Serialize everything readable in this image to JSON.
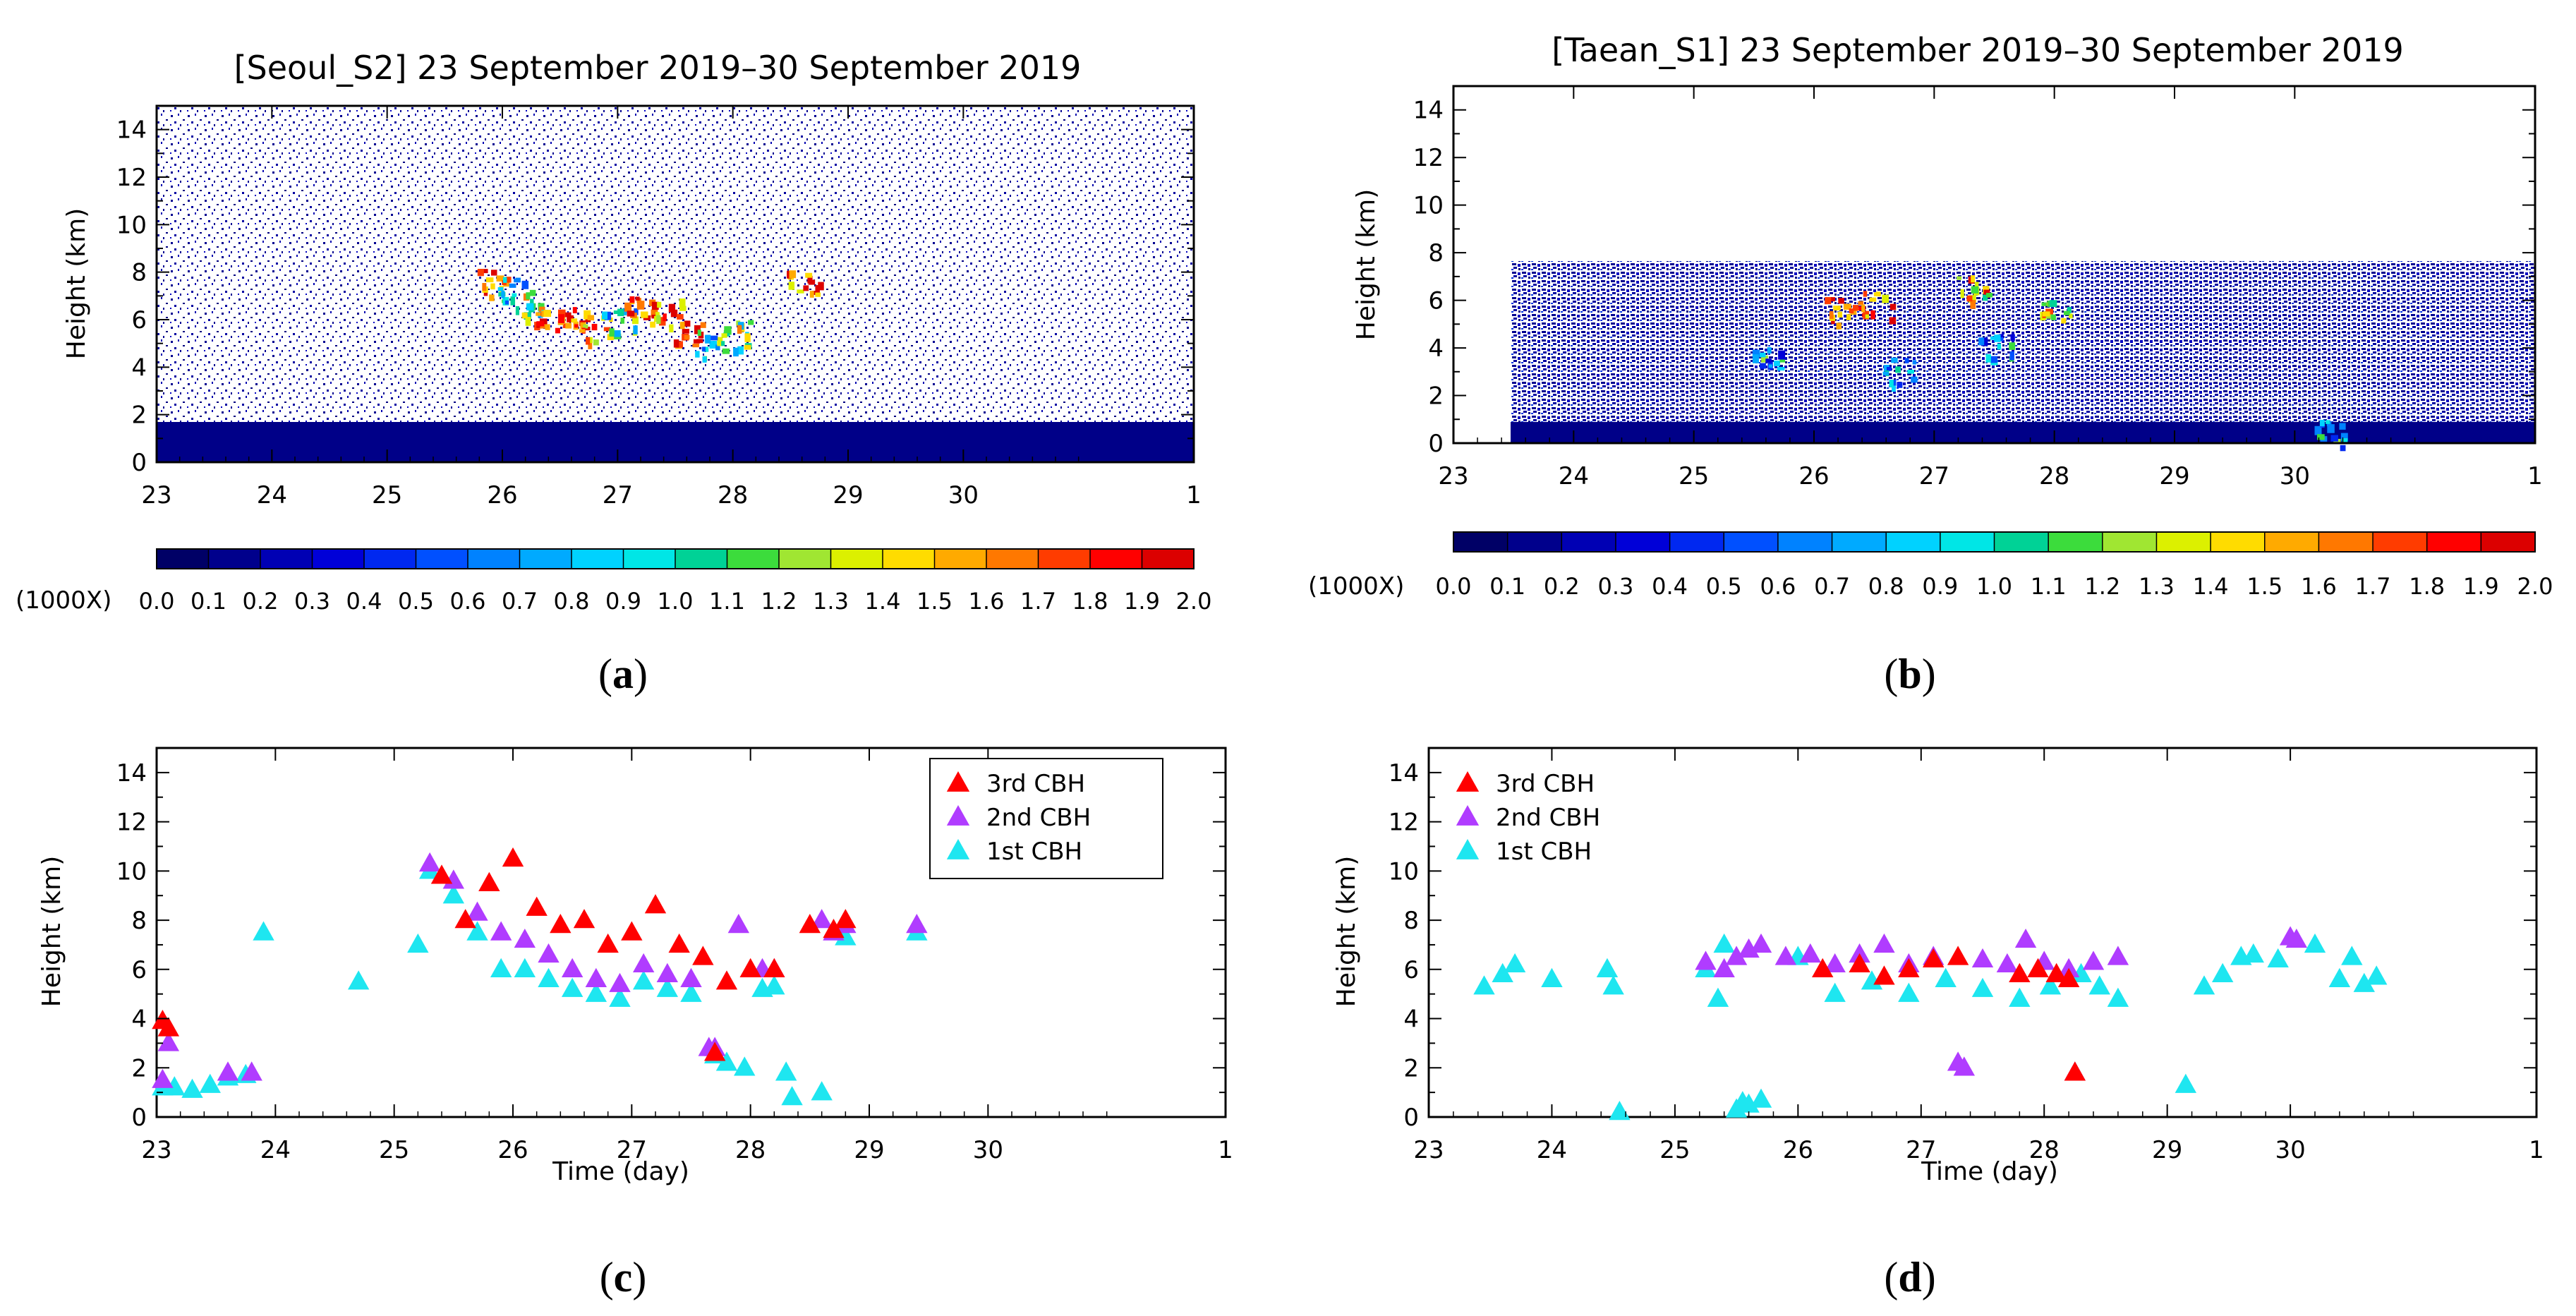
{
  "panels": [
    {
      "id": "a",
      "label_open": "(",
      "label_letter": "a",
      "label_close": ")",
      "title": "[Seoul_S2] 23 September 2019–30 September 2019",
      "ylabel": "Height (km)",
      "xlabel": "",
      "y_ticks": [
        "0",
        "2",
        "4",
        "6",
        "8",
        "10",
        "12",
        "14"
      ],
      "x_ticks": [
        "23",
        "24",
        "25",
        "26",
        "27",
        "28",
        "29",
        "30",
        "1"
      ],
      "colorbar_unit": "(1000X)",
      "colorbar_ticks": [
        "0.0",
        "0.1",
        "0.2",
        "0.3",
        "0.4",
        "0.5",
        "0.6",
        "0.7",
        "0.8",
        "0.9",
        "1.0",
        "1.1",
        "1.2",
        "1.3",
        "1.4",
        "1.5",
        "1.6",
        "1.7",
        "1.8",
        "1.9",
        "2.0"
      ]
    },
    {
      "id": "b",
      "label_open": "(",
      "label_letter": "b",
      "label_close": ")",
      "title": "[Taean_S1] 23 September 2019–30 September 2019",
      "ylabel": "Height (km)",
      "xlabel": "",
      "y_ticks": [
        "0",
        "2",
        "4",
        "6",
        "8",
        "10",
        "12",
        "14"
      ],
      "x_ticks": [
        "23",
        "24",
        "25",
        "26",
        "27",
        "28",
        "29",
        "30",
        "1"
      ],
      "colorbar_unit": "(1000X)",
      "colorbar_ticks": [
        "0.0",
        "0.1",
        "0.2",
        "0.3",
        "0.4",
        "0.5",
        "0.6",
        "0.7",
        "0.8",
        "0.9",
        "1.0",
        "1.1",
        "1.2",
        "1.3",
        "1.4",
        "1.5",
        "1.6",
        "1.7",
        "1.8",
        "1.9",
        "2.0"
      ]
    },
    {
      "id": "c",
      "label_open": "(",
      "label_letter": "c",
      "label_close": ")",
      "title": "",
      "ylabel": "Height (km)",
      "xlabel": "Time (day)",
      "y_ticks": [
        "0",
        "2",
        "4",
        "6",
        "8",
        "10",
        "12",
        "14"
      ],
      "x_ticks": [
        "23",
        "24",
        "25",
        "26",
        "27",
        "28",
        "29",
        "30",
        "1"
      ],
      "legend": [
        "3rd CBH",
        "2nd CBH",
        "1st CBH"
      ]
    },
    {
      "id": "d",
      "label_open": "(",
      "label_letter": "d",
      "label_close": ")",
      "title": "",
      "ylabel": "Height (km)",
      "xlabel": "Time (day)",
      "y_ticks": [
        "0",
        "2",
        "4",
        "6",
        "8",
        "10",
        "12",
        "14"
      ],
      "x_ticks": [
        "23",
        "24",
        "25",
        "26",
        "27",
        "28",
        "29",
        "30",
        "1"
      ],
      "legend": [
        "3rd CBH",
        "2nd CBH",
        "1st CBH"
      ]
    }
  ],
  "colors": {
    "cbh3": "#ff0000",
    "cbh2": "#b03cff",
    "cbh1": "#1ee6f0",
    "colorbar": [
      "#000066",
      "#00008c",
      "#0000b4",
      "#0000d8",
      "#0028f0",
      "#0050ff",
      "#0082ff",
      "#00aaff",
      "#00d2ff",
      "#00e6e6",
      "#00d296",
      "#3cdc3c",
      "#a0e632",
      "#dcf000",
      "#ffdc00",
      "#ffaa00",
      "#ff7800",
      "#ff3c00",
      "#ff0000",
      "#dc0000"
    ]
  },
  "chart_data": [
    {
      "panel": "a",
      "type": "heatmap",
      "title": "[Seoul_S2] 23 September 2019–30 September 2019",
      "ylabel": "Height (km)",
      "xlim": [
        23,
        32
      ],
      "ylim": [
        0,
        15
      ],
      "x_tick_values": [
        23,
        24,
        25,
        26,
        27,
        28,
        29,
        30,
        32
      ],
      "colorbar_range": [
        0.0,
        2.0
      ],
      "colorbar_unit": "(1000X)",
      "background_layer": {
        "x": [
          23,
          32
        ],
        "y": [
          0,
          1.2
        ],
        "value": 0.05
      },
      "noise_field": {
        "x": [
          23,
          32
        ],
        "y": [
          1.2,
          15
        ],
        "value": 0.1
      },
      "cloud_features": [
        {
          "x": 25.9,
          "y": 7.6,
          "value": 1.8
        },
        {
          "x": 26.1,
          "y": 7.2,
          "value": 0.8
        },
        {
          "x": 26.2,
          "y": 6.6,
          "value": 1.2
        },
        {
          "x": 26.4,
          "y": 6.2,
          "value": 1.8
        },
        {
          "x": 26.6,
          "y": 6.0,
          "value": 1.9
        },
        {
          "x": 26.8,
          "y": 5.6,
          "value": 1.6
        },
        {
          "x": 27.0,
          "y": 5.9,
          "value": 1.0
        },
        {
          "x": 27.2,
          "y": 6.5,
          "value": 1.8
        },
        {
          "x": 27.4,
          "y": 6.3,
          "value": 1.7
        },
        {
          "x": 27.6,
          "y": 5.5,
          "value": 1.9
        },
        {
          "x": 27.8,
          "y": 5.0,
          "value": 0.9
        },
        {
          "x": 28.0,
          "y": 5.4,
          "value": 1.2
        },
        {
          "x": 28.6,
          "y": 7.5,
          "value": 1.8
        }
      ]
    },
    {
      "panel": "b",
      "type": "heatmap",
      "title": "[Taean_S1] 23 September 2019–30 September 2019",
      "ylabel": "Height (km)",
      "xlim": [
        23,
        32
      ],
      "ylim": [
        0,
        15
      ],
      "x_tick_values": [
        23,
        24,
        25,
        26,
        27,
        28,
        29,
        30,
        32
      ],
      "colorbar_range": [
        0.0,
        2.0
      ],
      "colorbar_unit": "(1000X)",
      "data_coverage": {
        "x": [
          23.5,
          32
        ],
        "y": [
          0,
          7.5
        ]
      },
      "background_layer": {
        "x": [
          23.5,
          32
        ],
        "y": [
          0,
          0.8
        ],
        "value": 0.05
      },
      "cloud_features": [
        {
          "x": 26.2,
          "y": 5.6,
          "value": 1.8
        },
        {
          "x": 26.5,
          "y": 5.8,
          "value": 1.6
        },
        {
          "x": 27.3,
          "y": 6.5,
          "value": 1.5
        },
        {
          "x": 28.0,
          "y": 5.8,
          "value": 1.4
        },
        {
          "x": 25.6,
          "y": 3.5,
          "value": 0.8
        },
        {
          "x": 26.7,
          "y": 3.0,
          "value": 0.8
        },
        {
          "x": 27.5,
          "y": 4.0,
          "value": 0.8
        },
        {
          "x": 30.3,
          "y": 0.5,
          "value": 0.8
        }
      ]
    },
    {
      "panel": "c",
      "type": "scatter",
      "xlabel": "Time (day)",
      "ylabel": "Height (km)",
      "xlim": [
        23,
        32
      ],
      "ylim": [
        0,
        15
      ],
      "x_tick_values": [
        23,
        24,
        25,
        26,
        27,
        28,
        29,
        30,
        32
      ],
      "legend_position": "top-right",
      "series": [
        {
          "name": "1st CBH",
          "x": [
            23.05,
            23.15,
            23.3,
            23.45,
            23.6,
            23.75,
            23.9,
            24.7,
            25.2,
            25.3,
            25.5,
            25.7,
            25.9,
            26.1,
            26.3,
            26.5,
            26.7,
            26.9,
            27.1,
            27.3,
            27.5,
            27.7,
            27.8,
            27.95,
            28.1,
            28.2,
            28.3,
            28.35,
            28.6,
            28.8,
            29.4
          ],
          "y": [
            1.2,
            1.2,
            1.1,
            1.3,
            1.6,
            1.7,
            7.5,
            5.5,
            7.0,
            10.0,
            9.0,
            7.5,
            6.0,
            6.0,
            5.6,
            5.2,
            5.0,
            4.8,
            5.5,
            5.2,
            5.0,
            2.5,
            2.2,
            2.0,
            5.2,
            5.3,
            1.8,
            0.8,
            1.0,
            7.3,
            7.5
          ]
        },
        {
          "name": "2nd CBH",
          "x": [
            23.05,
            23.1,
            23.6,
            23.8,
            25.3,
            25.5,
            25.7,
            25.9,
            26.1,
            26.3,
            26.5,
            26.7,
            26.9,
            27.1,
            27.3,
            27.5,
            27.65,
            27.7,
            27.9,
            28.1,
            28.2,
            28.6,
            28.7,
            28.8,
            29.4
          ],
          "y": [
            1.5,
            3.0,
            1.8,
            1.8,
            10.3,
            9.6,
            8.3,
            7.5,
            7.2,
            6.6,
            6.0,
            5.6,
            5.4,
            6.2,
            5.8,
            5.6,
            2.8,
            2.8,
            7.8,
            6.0,
            6.0,
            8.0,
            7.5,
            7.8,
            7.8
          ]
        },
        {
          "name": "3rd CBH",
          "x": [
            23.05,
            23.1,
            25.4,
            25.6,
            25.8,
            26.0,
            26.2,
            26.4,
            26.6,
            26.8,
            27.0,
            27.2,
            27.4,
            27.6,
            27.7,
            27.8,
            28.0,
            28.2,
            28.5,
            28.7,
            28.8
          ],
          "y": [
            3.9,
            3.6,
            9.8,
            8.0,
            9.5,
            10.5,
            8.5,
            7.8,
            8.0,
            7.0,
            7.5,
            8.6,
            7.0,
            6.5,
            2.6,
            5.5,
            6.0,
            6.0,
            7.8,
            7.6,
            8.0
          ]
        }
      ]
    },
    {
      "panel": "d",
      "type": "scatter",
      "xlabel": "Time (day)",
      "ylabel": "Height (km)",
      "xlim": [
        23,
        32
      ],
      "ylim": [
        0,
        15
      ],
      "x_tick_values": [
        23,
        24,
        25,
        26,
        27,
        28,
        29,
        30,
        32
      ],
      "legend_position": "top-left",
      "series": [
        {
          "name": "1st CBH",
          "x": [
            23.45,
            23.6,
            23.7,
            24.0,
            24.45,
            24.5,
            24.55,
            25.25,
            25.35,
            25.4,
            25.5,
            25.55,
            25.6,
            25.7,
            26.0,
            26.3,
            26.6,
            26.9,
            27.2,
            27.5,
            27.8,
            28.05,
            28.3,
            28.45,
            28.6,
            29.15,
            29.3,
            29.45,
            29.6,
            29.7,
            29.9,
            30.2,
            30.4,
            30.5,
            30.6,
            30.7
          ],
          "y": [
            5.3,
            5.8,
            6.2,
            5.6,
            6.0,
            5.3,
            0.2,
            6.0,
            4.8,
            7.0,
            0.3,
            0.6,
            0.5,
            0.7,
            6.5,
            5.0,
            5.5,
            5.0,
            5.6,
            5.2,
            4.8,
            5.3,
            5.8,
            5.3,
            4.8,
            1.3,
            5.3,
            5.8,
            6.5,
            6.6,
            6.4,
            7.0,
            5.6,
            6.5,
            5.4,
            5.7
          ]
        },
        {
          "name": "2nd CBH",
          "x": [
            25.25,
            25.4,
            25.5,
            25.6,
            25.7,
            25.9,
            26.1,
            26.3,
            26.5,
            26.7,
            26.9,
            27.1,
            27.3,
            27.35,
            27.5,
            27.7,
            27.85,
            28.0,
            28.2,
            28.25,
            28.4,
            28.6,
            30.0,
            30.05
          ],
          "y": [
            6.3,
            6.0,
            6.5,
            6.8,
            7.0,
            6.5,
            6.6,
            6.2,
            6.6,
            7.0,
            6.2,
            6.5,
            2.2,
            2.0,
            6.4,
            6.2,
            7.2,
            6.3,
            6.0,
            1.8,
            6.3,
            6.5,
            7.3,
            7.2
          ]
        },
        {
          "name": "3rd CBH",
          "x": [
            26.2,
            26.5,
            26.7,
            26.9,
            27.1,
            27.3,
            27.8,
            27.95,
            28.1,
            28.2,
            28.25
          ],
          "y": [
            6.0,
            6.2,
            5.7,
            6.0,
            6.4,
            6.5,
            5.8,
            6.0,
            5.8,
            5.6,
            1.8
          ]
        }
      ]
    }
  ]
}
